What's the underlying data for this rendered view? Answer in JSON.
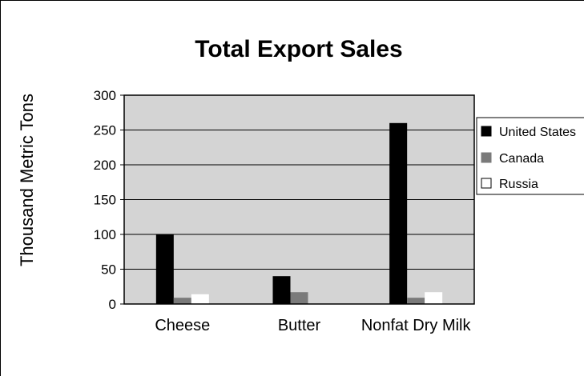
{
  "chart_data": {
    "type": "bar",
    "title": "Total Export Sales",
    "ylabel": "Thousand Metric Tons",
    "xlabel": "",
    "categories": [
      "Cheese",
      "Butter",
      "Nonfat Dry Milk"
    ],
    "series": [
      {
        "name": "United States",
        "values": [
          100,
          40,
          260
        ],
        "color": "#000000"
      },
      {
        "name": "Canada",
        "values": [
          9,
          17,
          9
        ],
        "color": "#7a7a7a"
      },
      {
        "name": "Russia",
        "values": [
          14,
          0,
          17
        ],
        "color": "#ffffff"
      }
    ],
    "ylim": [
      0,
      300
    ],
    "yticks": [
      "0",
      "50",
      "100",
      "150",
      "200",
      "250",
      "300"
    ],
    "grid": true,
    "legend_position": "right",
    "plot_background": "#d4d4d4"
  }
}
